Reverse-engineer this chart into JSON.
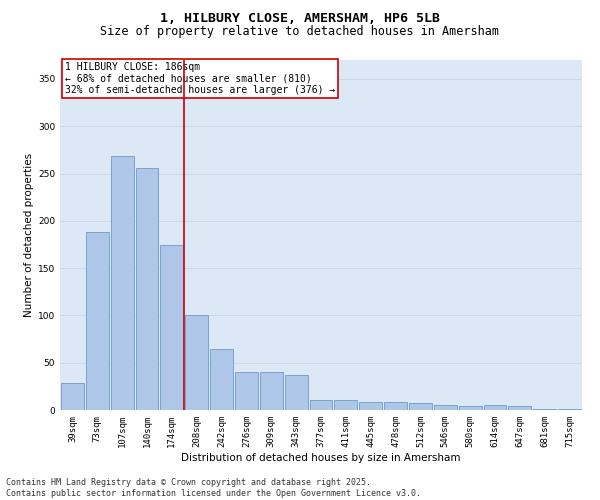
{
  "title_line1": "1, HILBURY CLOSE, AMERSHAM, HP6 5LB",
  "title_line2": "Size of property relative to detached houses in Amersham",
  "xlabel": "Distribution of detached houses by size in Amersham",
  "ylabel": "Number of detached properties",
  "categories": [
    "39sqm",
    "73sqm",
    "107sqm",
    "140sqm",
    "174sqm",
    "208sqm",
    "242sqm",
    "276sqm",
    "309sqm",
    "343sqm",
    "377sqm",
    "411sqm",
    "445sqm",
    "478sqm",
    "512sqm",
    "546sqm",
    "580sqm",
    "614sqm",
    "647sqm",
    "681sqm",
    "715sqm"
  ],
  "values": [
    29,
    188,
    268,
    256,
    174,
    100,
    65,
    40,
    40,
    37,
    11,
    11,
    8,
    8,
    7,
    5,
    4,
    5,
    4,
    1,
    1
  ],
  "bar_color": "#aec6e8",
  "bar_edge_color": "#5a8fc0",
  "grid_color": "#c8d8ea",
  "background_color": "#dce8f5",
  "vline_index": 4,
  "vline_color": "#cc0000",
  "annotation_text": "1 HILBURY CLOSE: 186sqm\n← 68% of detached houses are smaller (810)\n32% of semi-detached houses are larger (376) →",
  "annotation_box_color": "#cc0000",
  "ylim": [
    0,
    370
  ],
  "yticks": [
    0,
    50,
    100,
    150,
    200,
    250,
    300,
    350
  ],
  "footnote_line1": "Contains HM Land Registry data © Crown copyright and database right 2025.",
  "footnote_line2": "Contains public sector information licensed under the Open Government Licence v3.0.",
  "title_fontsize": 9.5,
  "subtitle_fontsize": 8.5,
  "axis_label_fontsize": 7.5,
  "tick_fontsize": 6.5,
  "annotation_fontsize": 7,
  "footnote_fontsize": 6
}
